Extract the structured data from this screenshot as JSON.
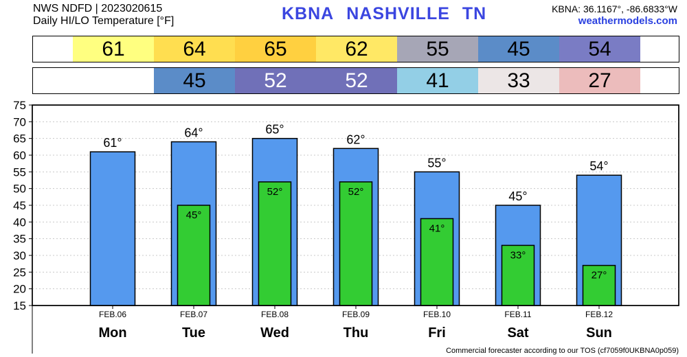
{
  "header": {
    "source_line": "NWS NDFD | 2023020615",
    "product_line": "Daily HI/LO Temperature [°F]",
    "station_code": "KBNA",
    "station_name": "NASHVILLE",
    "state": "TN",
    "coords": "KBNA: 36.1167°, -86.6833°W",
    "site": "weathermodels.com"
  },
  "hi_row": [
    {
      "text": "61",
      "color": "#ffff80",
      "text_color": "#000000"
    },
    {
      "text": "64",
      "color": "#ffde50",
      "text_color": "#000000"
    },
    {
      "text": "65",
      "color": "#ffd040",
      "text_color": "#000000"
    },
    {
      "text": "62",
      "color": "#ffe865",
      "text_color": "#000000"
    },
    {
      "text": "55",
      "color": "#a6a6b6",
      "text_color": "#000000"
    },
    {
      "text": "45",
      "color": "#5b8cc8",
      "text_color": "#000000"
    },
    {
      "text": "54",
      "color": "#7a7cc4",
      "text_color": "#000000"
    }
  ],
  "lo_row": [
    {
      "text": "",
      "color": "#ffffff",
      "text_color": "#000000"
    },
    {
      "text": "45",
      "color": "#5b8cc8",
      "text_color": "#000000"
    },
    {
      "text": "52",
      "color": "#7070b8",
      "text_color": "#ffffff"
    },
    {
      "text": "52",
      "color": "#7070b8",
      "text_color": "#ffffff"
    },
    {
      "text": "41",
      "color": "#93cfe6",
      "text_color": "#000000"
    },
    {
      "text": "33",
      "color": "#ece6e6",
      "text_color": "#000000"
    },
    {
      "text": "27",
      "color": "#ecbcbc",
      "text_color": "#000000"
    }
  ],
  "chart_data": {
    "type": "bar",
    "categories": [
      "FEB.06",
      "FEB.07",
      "FEB.08",
      "FEB.09",
      "FEB.10",
      "FEB.11",
      "FEB.12"
    ],
    "days": [
      "Mon",
      "Tue",
      "Wed",
      "Thu",
      "Fri",
      "Sat",
      "Sun"
    ],
    "series": [
      {
        "values": [
          61,
          64,
          65,
          62,
          55,
          45,
          54
        ],
        "labels": [
          "61°",
          "64°",
          "65°",
          "62°",
          "55°",
          "45°",
          "54°"
        ],
        "color": "#5599ee"
      },
      {
        "values": [
          null,
          45,
          52,
          52,
          41,
          33,
          27
        ],
        "labels": [
          "",
          "45°",
          "52°",
          "52°",
          "41°",
          "33°",
          "27°"
        ],
        "color": "#33cc33"
      }
    ],
    "ylim": [
      15,
      75
    ],
    "yticks": [
      15,
      20,
      25,
      30,
      35,
      40,
      45,
      50,
      55,
      60,
      65,
      70,
      75
    ],
    "grid": true
  },
  "footer": "Commercial forecaster according to our TOS (cf7059f0UKBNA0p059)"
}
